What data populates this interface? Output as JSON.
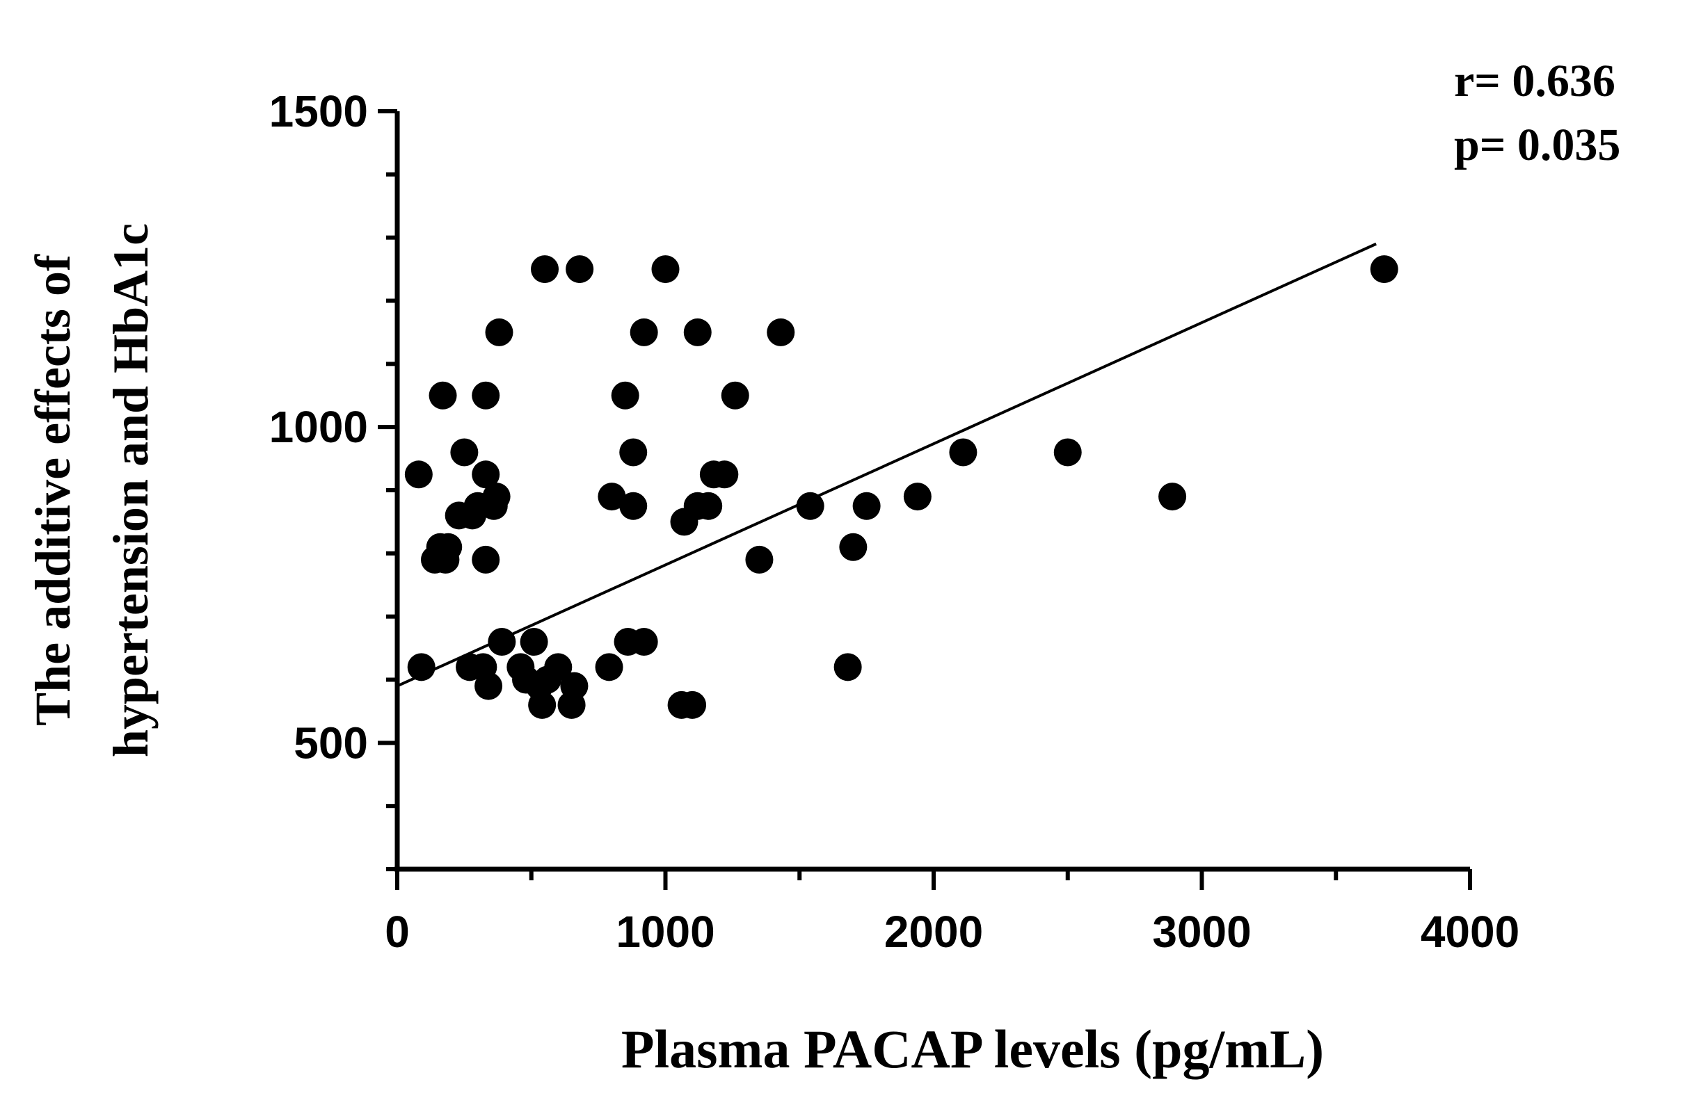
{
  "chart_data": {
    "type": "scatter",
    "title": "",
    "xlabel": "Plasma PACAP levels (pg/mL)",
    "ylabel_lines": [
      "The additive effects of",
      "hypertension and HbA1c"
    ],
    "xlim": [
      0,
      4000
    ],
    "ylim": [
      300,
      1500
    ],
    "x_ticks": [
      0,
      1000,
      2000,
      3000,
      4000
    ],
    "y_ticks": [
      500,
      1000,
      1500
    ],
    "x_tick_labels": [
      "0",
      "1000",
      "2000",
      "3000",
      "4000"
    ],
    "y_tick_labels": [
      "500",
      "1000",
      "1500"
    ],
    "annotations": {
      "r": "r= 0.636",
      "p": "p= 0.035"
    },
    "regression_line": {
      "x": [
        0,
        3650
      ],
      "y": [
        590,
        1290
      ]
    },
    "points": [
      {
        "x": 80,
        "y": 925
      },
      {
        "x": 90,
        "y": 620
      },
      {
        "x": 140,
        "y": 790
      },
      {
        "x": 160,
        "y": 810
      },
      {
        "x": 180,
        "y": 790
      },
      {
        "x": 170,
        "y": 1050
      },
      {
        "x": 190,
        "y": 810
      },
      {
        "x": 230,
        "y": 860
      },
      {
        "x": 250,
        "y": 960
      },
      {
        "x": 270,
        "y": 620
      },
      {
        "x": 280,
        "y": 860
      },
      {
        "x": 300,
        "y": 875
      },
      {
        "x": 320,
        "y": 620
      },
      {
        "x": 330,
        "y": 1050
      },
      {
        "x": 330,
        "y": 925
      },
      {
        "x": 330,
        "y": 790
      },
      {
        "x": 340,
        "y": 590
      },
      {
        "x": 360,
        "y": 875
      },
      {
        "x": 370,
        "y": 890
      },
      {
        "x": 380,
        "y": 1150
      },
      {
        "x": 390,
        "y": 660
      },
      {
        "x": 460,
        "y": 620
      },
      {
        "x": 480,
        "y": 600
      },
      {
        "x": 510,
        "y": 660
      },
      {
        "x": 530,
        "y": 590
      },
      {
        "x": 540,
        "y": 560
      },
      {
        "x": 550,
        "y": 1250
      },
      {
        "x": 560,
        "y": 600
      },
      {
        "x": 600,
        "y": 620
      },
      {
        "x": 650,
        "y": 560
      },
      {
        "x": 660,
        "y": 590
      },
      {
        "x": 680,
        "y": 1250
      },
      {
        "x": 790,
        "y": 620
      },
      {
        "x": 800,
        "y": 890
      },
      {
        "x": 850,
        "y": 1050
      },
      {
        "x": 860,
        "y": 660
      },
      {
        "x": 880,
        "y": 875
      },
      {
        "x": 880,
        "y": 960
      },
      {
        "x": 920,
        "y": 660
      },
      {
        "x": 920,
        "y": 1150
      },
      {
        "x": 1000,
        "y": 1250
      },
      {
        "x": 1060,
        "y": 560
      },
      {
        "x": 1070,
        "y": 850
      },
      {
        "x": 1100,
        "y": 560
      },
      {
        "x": 1120,
        "y": 1150
      },
      {
        "x": 1120,
        "y": 875
      },
      {
        "x": 1160,
        "y": 875
      },
      {
        "x": 1180,
        "y": 925
      },
      {
        "x": 1220,
        "y": 925
      },
      {
        "x": 1260,
        "y": 1050
      },
      {
        "x": 1350,
        "y": 790
      },
      {
        "x": 1430,
        "y": 1150
      },
      {
        "x": 1540,
        "y": 875
      },
      {
        "x": 1680,
        "y": 620
      },
      {
        "x": 1700,
        "y": 810
      },
      {
        "x": 1750,
        "y": 875
      },
      {
        "x": 1940,
        "y": 890
      },
      {
        "x": 2110,
        "y": 960
      },
      {
        "x": 2500,
        "y": 960
      },
      {
        "x": 2890,
        "y": 890
      },
      {
        "x": 3680,
        "y": 1250
      }
    ]
  }
}
